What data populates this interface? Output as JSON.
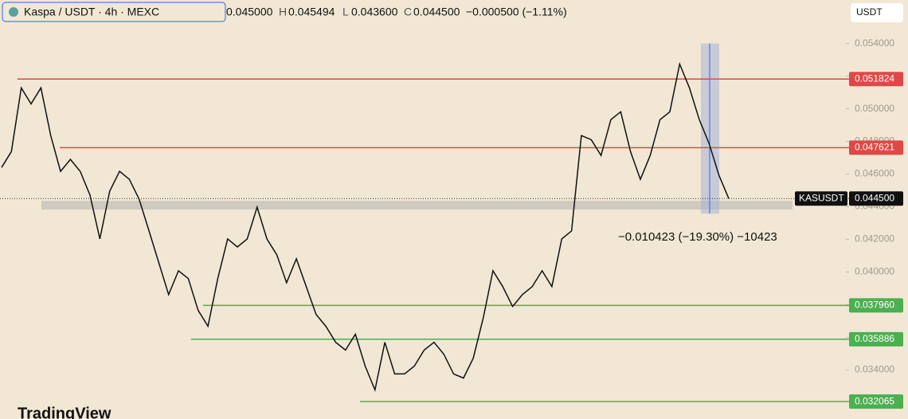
{
  "header": {
    "symbol": "Kaspa / USDT · 4h · MEXC",
    "open_label": "O",
    "open": "0.045000",
    "high_label": "H",
    "high": "0.045494",
    "low_label": "L",
    "low": "0.043600",
    "close_label": "C",
    "close": "0.044500",
    "change": "−0.000500 (−1.11%)",
    "currency": "USDT",
    "brand": "TradingView"
  },
  "chart_data": {
    "type": "line",
    "color": "#111111",
    "values": [
      0.04641,
      0.04738,
      0.05128,
      0.0503,
      0.05128,
      0.04836,
      0.04617,
      0.0469,
      0.04617,
      0.04471,
      0.04203,
      0.04495,
      0.04617,
      0.04568,
      0.04446,
      0.04252,
      0.04057,
      0.03862,
      0.04008,
      0.0396,
      0.03765,
      0.03668,
      0.0396,
      0.04203,
      0.04154,
      0.04203,
      0.04398,
      0.04203,
      0.04106,
      0.03935,
      0.04081,
      0.03911,
      0.03741,
      0.03668,
      0.0357,
      0.03522,
      0.03619,
      0.03424,
      0.03278,
      0.0357,
      0.03376,
      0.03376,
      0.03424,
      0.03522,
      0.0357,
      0.03497,
      0.03376,
      0.03351,
      0.03473,
      0.03716,
      0.04008,
      0.03911,
      0.03789,
      0.03862,
      0.03911,
      0.04008,
      0.03911,
      0.04203,
      0.04252,
      0.04836,
      0.04811,
      0.04714,
      0.04933,
      0.04982,
      0.04738,
      0.04568,
      0.04714,
      0.04933,
      0.04982,
      0.05274,
      0.05128,
      0.04933,
      0.04787,
      0.04592,
      0.0445
    ],
    "ylim": [
      0.031,
      0.0552
    ],
    "yticks": [
      {
        "value": 0.034,
        "label": "0.034000"
      },
      {
        "value": 0.036,
        "label": "0.036000"
      },
      {
        "value": 0.038,
        "label": "0.038000"
      },
      {
        "value": 0.04,
        "label": "0.040000"
      },
      {
        "value": 0.042,
        "label": "0.042000"
      },
      {
        "value": 0.044,
        "label": "0.044000"
      },
      {
        "value": 0.046,
        "label": "0.046000"
      },
      {
        "value": 0.048,
        "label": "0.048000"
      },
      {
        "value": 0.05,
        "label": "0.050000"
      },
      {
        "value": 0.052,
        "label": "0.052000"
      },
      {
        "value": 0.054,
        "label": "0.054000"
      }
    ],
    "levels": [
      {
        "value": 0.051824,
        "label": "0.051824",
        "color": "#e04848"
      },
      {
        "value": 0.047621,
        "label": "0.047621",
        "color": "#e04848"
      },
      {
        "value": 0.03796,
        "label": "0.037960",
        "color": "#4caf50"
      },
      {
        "value": 0.035886,
        "label": "0.035886",
        "color": "#4caf50"
      },
      {
        "value": 0.032065,
        "label": "0.032065",
        "color": "#4caf50"
      }
    ],
    "last_price": {
      "name": "KASUSDT",
      "value": 0.0445,
      "label": "0.044500"
    },
    "zone": [
      0.04383,
      0.04436
    ],
    "measure": {
      "from": 0.054,
      "to": 0.043577,
      "label": "−0.010423 (−19.30%) −10423"
    }
  }
}
